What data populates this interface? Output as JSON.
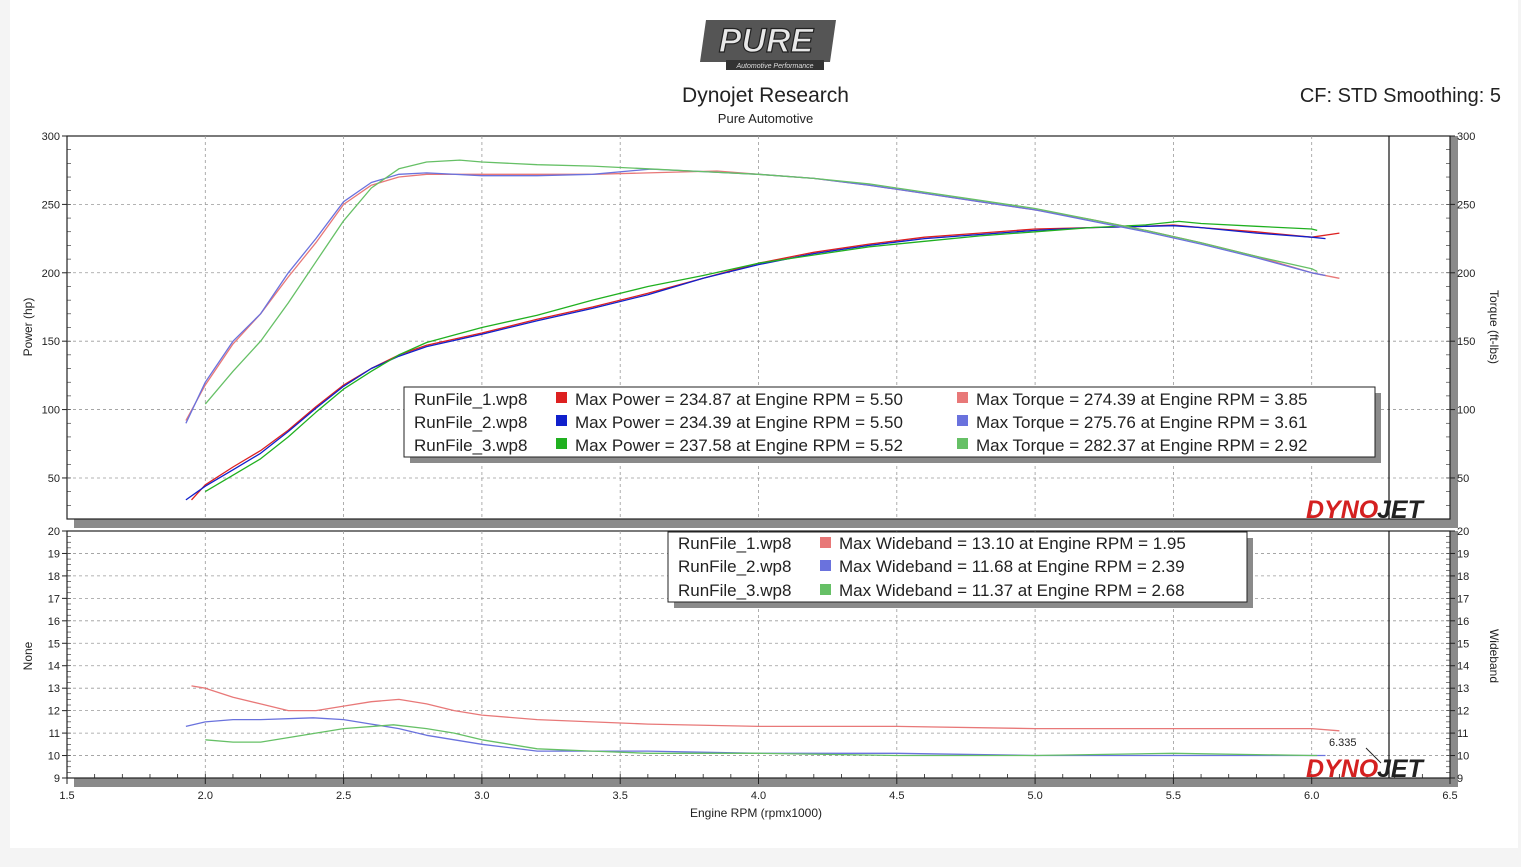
{
  "header": {
    "logo_text": "PURE",
    "logo_subtext": "Automotive Performance",
    "title": "Dynojet Research",
    "subtitle": "Pure Automotive",
    "cf_text": "CF: STD Smoothing: 5"
  },
  "watermark_text": [
    "DYNO",
    "JET"
  ],
  "colors": {
    "run1": "#dd2020",
    "run2": "#1020cc",
    "run3": "#20b020",
    "run1_light": "#e87878",
    "run2_light": "#6a72dd",
    "run3_light": "#66c066",
    "grid": "#9a9a9a"
  },
  "chart_data": [
    {
      "type": "line",
      "panel": "top",
      "xlabel": "Engine RPM (rpmx1000)",
      "ylabel_left": "Power (hp)",
      "ylabel_right": "Torque (ft-lbs)",
      "xlim": [
        1.5,
        6.5
      ],
      "ylim": [
        20,
        300
      ],
      "x_ticks": [
        "1.5",
        "2.0",
        "2.5",
        "3.0",
        "3.5",
        "4.0",
        "4.5",
        "5.0",
        "5.5",
        "6.0",
        "6.5"
      ],
      "y_ticks": [
        "50",
        "100",
        "150",
        "200",
        "250",
        "300"
      ],
      "grid": true,
      "legend_position": "bottom-center",
      "legend": [
        {
          "file": "RunFile_1.wp8",
          "power": "Max Power = 234.87 at Engine RPM = 5.50",
          "torque": "Max Torque = 274.39 at Engine RPM = 3.85"
        },
        {
          "file": "RunFile_2.wp8",
          "power": "Max Power = 234.39 at Engine RPM = 5.50",
          "torque": "Max Torque = 275.76 at Engine RPM = 3.61"
        },
        {
          "file": "RunFile_3.wp8",
          "power": "Max Power = 237.58 at Engine RPM = 5.52",
          "torque": "Max Torque = 282.37 at Engine RPM = 2.92"
        }
      ],
      "series": [
        {
          "name": "RunFile_1.wp8",
          "kind": "power",
          "color": "#dd2020",
          "x": [
            1.95,
            2.0,
            2.1,
            2.2,
            2.3,
            2.4,
            2.5,
            2.6,
            2.7,
            2.8,
            3.0,
            3.2,
            3.4,
            3.6,
            3.8,
            4.0,
            4.2,
            4.4,
            4.6,
            4.8,
            5.0,
            5.2,
            5.4,
            5.5,
            5.6,
            5.8,
            6.0,
            6.1
          ],
          "y": [
            34,
            45,
            58,
            70,
            85,
            102,
            118,
            130,
            140,
            147,
            156,
            166,
            175,
            185,
            196,
            207,
            215,
            221,
            226,
            229,
            232,
            233,
            234,
            234.9,
            233,
            230,
            226,
            229
          ]
        },
        {
          "name": "RunFile_2.wp8",
          "kind": "power",
          "color": "#1020cc",
          "x": [
            1.93,
            2.0,
            2.1,
            2.2,
            2.3,
            2.4,
            2.5,
            2.6,
            2.7,
            2.8,
            3.0,
            3.2,
            3.4,
            3.6,
            3.8,
            4.0,
            4.2,
            4.4,
            4.6,
            4.8,
            5.0,
            5.2,
            5.4,
            5.5,
            5.6,
            5.8,
            6.0,
            6.05
          ],
          "y": [
            34,
            44,
            56,
            68,
            84,
            101,
            117,
            130,
            139,
            146,
            155,
            165,
            174,
            184,
            196,
            206,
            214,
            220,
            225,
            228,
            231,
            233,
            234,
            234.4,
            233,
            229,
            226,
            225
          ]
        },
        {
          "name": "RunFile_3.wp8",
          "kind": "power",
          "color": "#20b020",
          "x": [
            2.0,
            2.1,
            2.2,
            2.3,
            2.4,
            2.5,
            2.6,
            2.7,
            2.8,
            3.0,
            3.2,
            3.4,
            3.6,
            3.8,
            4.0,
            4.2,
            4.4,
            4.6,
            4.8,
            5.0,
            5.2,
            5.4,
            5.52,
            5.6,
            5.8,
            6.0,
            6.02
          ],
          "y": [
            40,
            52,
            64,
            80,
            98,
            115,
            128,
            140,
            149,
            160,
            169,
            180,
            190,
            198,
            207,
            213,
            219,
            223,
            227,
            230,
            233,
            235,
            237.6,
            236,
            234,
            232,
            231
          ]
        },
        {
          "name": "RunFile_1.wp8",
          "kind": "torque",
          "color": "#e87878",
          "x": [
            1.93,
            2.0,
            2.1,
            2.2,
            2.3,
            2.4,
            2.5,
            2.6,
            2.7,
            2.8,
            3.0,
            3.2,
            3.4,
            3.6,
            3.85,
            4.0,
            4.2,
            4.4,
            4.6,
            4.8,
            5.0,
            5.2,
            5.4,
            5.6,
            5.8,
            6.0,
            6.1
          ],
          "y": [
            92,
            118,
            148,
            170,
            197,
            222,
            250,
            264,
            270,
            272,
            272,
            272,
            272,
            273,
            274.4,
            272,
            269,
            264,
            258,
            252,
            246,
            239,
            231,
            222,
            212,
            200,
            196
          ]
        },
        {
          "name": "RunFile_2.wp8",
          "kind": "torque",
          "color": "#6a72dd",
          "x": [
            1.93,
            2.0,
            2.1,
            2.2,
            2.3,
            2.4,
            2.5,
            2.6,
            2.7,
            2.8,
            3.0,
            3.2,
            3.4,
            3.61,
            3.8,
            4.0,
            4.2,
            4.4,
            4.6,
            4.8,
            5.0,
            5.2,
            5.4,
            5.6,
            5.8,
            6.0,
            6.05
          ],
          "y": [
            90,
            120,
            150,
            170,
            200,
            225,
            252,
            266,
            272,
            273,
            271,
            271,
            272,
            275.8,
            274,
            272,
            269,
            264,
            258,
            252,
            246,
            238,
            230,
            221,
            211,
            200,
            198
          ]
        },
        {
          "name": "RunFile_3.wp8",
          "kind": "torque",
          "color": "#66c066",
          "x": [
            2.0,
            2.1,
            2.2,
            2.3,
            2.4,
            2.5,
            2.6,
            2.7,
            2.8,
            2.92,
            3.0,
            3.2,
            3.4,
            3.6,
            3.8,
            4.0,
            4.2,
            4.4,
            4.6,
            4.8,
            5.0,
            5.2,
            5.4,
            5.6,
            5.8,
            6.0,
            6.02
          ],
          "y": [
            104,
            128,
            150,
            178,
            208,
            238,
            262,
            276,
            281,
            282.4,
            281,
            279,
            278,
            276,
            274,
            272,
            269,
            265,
            259,
            253,
            247,
            239,
            231,
            222,
            212,
            203,
            201
          ]
        }
      ]
    },
    {
      "type": "line",
      "panel": "bottom",
      "xlabel": "Engine RPM (rpmx1000)",
      "ylabel_left": "None",
      "ylabel_right": "Wideband",
      "xlim": [
        1.5,
        6.5
      ],
      "ylim": [
        9,
        20
      ],
      "x_ticks": [
        "1.5",
        "2.0",
        "2.5",
        "3.0",
        "3.5",
        "4.0",
        "4.5",
        "5.0",
        "5.5",
        "6.0",
        "6.5"
      ],
      "y_ticks": [
        "9",
        "10",
        "11",
        "12",
        "13",
        "14",
        "15",
        "16",
        "17",
        "18",
        "19",
        "20"
      ],
      "grid": true,
      "legend_position": "top-right",
      "annotation": "6.335",
      "legend": [
        {
          "file": "RunFile_1.wp8",
          "text": "Max Wideband = 13.10 at Engine RPM = 1.95"
        },
        {
          "file": "RunFile_2.wp8",
          "text": "Max Wideband = 11.68 at Engine RPM = 2.39"
        },
        {
          "file": "RunFile_3.wp8",
          "text": "Max Wideband = 11.37 at Engine RPM = 2.68"
        }
      ],
      "series": [
        {
          "name": "RunFile_1.wp8",
          "color": "#e87878",
          "x": [
            1.95,
            2.0,
            2.1,
            2.2,
            2.3,
            2.4,
            2.5,
            2.6,
            2.7,
            2.8,
            2.9,
            3.0,
            3.2,
            3.4,
            3.6,
            4.0,
            4.5,
            5.0,
            5.5,
            6.0,
            6.1
          ],
          "y": [
            13.1,
            13.0,
            12.6,
            12.3,
            12.0,
            12.0,
            12.2,
            12.4,
            12.5,
            12.3,
            12.0,
            11.8,
            11.6,
            11.5,
            11.4,
            11.3,
            11.3,
            11.2,
            11.2,
            11.2,
            11.1
          ]
        },
        {
          "name": "RunFile_2.wp8",
          "color": "#6a72dd",
          "x": [
            1.93,
            2.0,
            2.1,
            2.2,
            2.39,
            2.5,
            2.6,
            2.7,
            2.8,
            2.9,
            3.0,
            3.2,
            3.4,
            3.6,
            4.0,
            4.5,
            5.0,
            5.5,
            6.0,
            6.05
          ],
          "y": [
            11.3,
            11.5,
            11.6,
            11.6,
            11.68,
            11.6,
            11.4,
            11.2,
            10.9,
            10.7,
            10.5,
            10.2,
            10.2,
            10.2,
            10.1,
            10.1,
            10.0,
            10.0,
            10.0,
            10.0
          ]
        },
        {
          "name": "RunFile_3.wp8",
          "color": "#66c066",
          "x": [
            2.0,
            2.1,
            2.2,
            2.3,
            2.4,
            2.5,
            2.68,
            2.8,
            2.9,
            3.0,
            3.2,
            3.4,
            3.6,
            4.0,
            4.5,
            5.0,
            5.5,
            6.0,
            6.02
          ],
          "y": [
            10.7,
            10.6,
            10.6,
            10.8,
            11.0,
            11.2,
            11.37,
            11.2,
            11.0,
            10.7,
            10.3,
            10.2,
            10.1,
            10.1,
            10.0,
            10.0,
            10.1,
            10.0,
            10.0
          ]
        }
      ]
    }
  ]
}
